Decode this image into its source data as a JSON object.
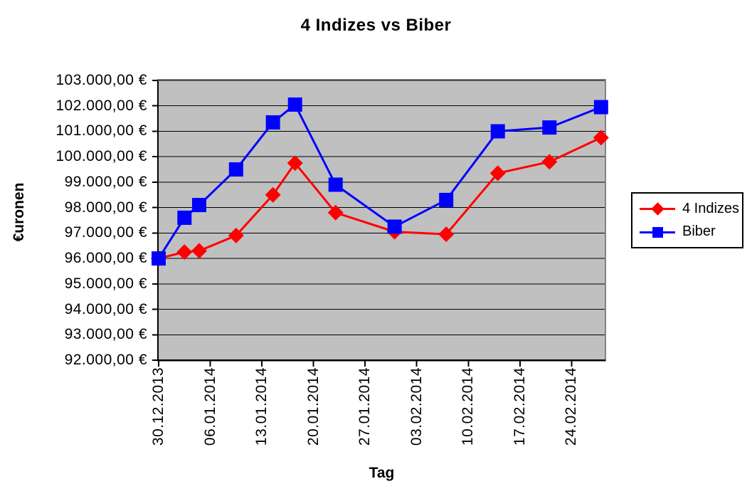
{
  "chart_data": {
    "type": "line",
    "title": "4 Indizes vs Biber",
    "xlabel": "Tag",
    "ylabel": "€uronen",
    "plot_background": "#c0c0c0",
    "grid": "horizontal",
    "y_axis": {
      "min": 92000,
      "max": 103000,
      "step": 1000,
      "tick_labels_top_to_bottom": [
        "103.000,00 €",
        "102.000,00 €",
        "101.000,00 €",
        "100.000,00 €",
        "99.000,00 €",
        "98.000,00 €",
        "97.000,00 €",
        "96.000,00 €",
        "95.000,00 €",
        "94.000,00 €",
        "93.000,00 €",
        "92.000,00 €"
      ]
    },
    "x_axis": {
      "unit": "days offset from first tick (30.12.2013)",
      "min": 0,
      "max": 60.5,
      "ticks": [
        {
          "day": 0,
          "label": "30.12.2013"
        },
        {
          "day": 7,
          "label": "06.01.2014"
        },
        {
          "day": 14,
          "label": "13.01.2014"
        },
        {
          "day": 21,
          "label": "20.01.2014"
        },
        {
          "day": 28,
          "label": "27.01.2014"
        },
        {
          "day": 35,
          "label": "03.02.2014"
        },
        {
          "day": 42,
          "label": "10.02.2014"
        },
        {
          "day": 49,
          "label": "17.02.2014"
        },
        {
          "day": 56,
          "label": "24.02.2014"
        }
      ]
    },
    "legend": {
      "position": "right",
      "border_color": "#000000",
      "entries": [
        {
          "label": "4 Indizes",
          "color": "#ff0000",
          "marker": "diamond"
        },
        {
          "label": "Biber",
          "color": "#0000ff",
          "marker": "square"
        }
      ]
    },
    "series": [
      {
        "name": "4 Indizes",
        "color": "#ff0000",
        "marker": "diamond",
        "x_days": [
          0,
          3.5,
          5.5,
          10.5,
          15.5,
          18.5,
          24,
          32,
          39,
          46,
          53,
          60
        ],
        "values": [
          96000,
          96250,
          96300,
          96900,
          98500,
          99750,
          97800,
          97050,
          96950,
          99350,
          99800,
          100750
        ]
      },
      {
        "name": "Biber",
        "color": "#0000ff",
        "marker": "square",
        "x_days": [
          0,
          3.5,
          5.5,
          10.5,
          15.5,
          18.5,
          24,
          32,
          39,
          46,
          53,
          60
        ],
        "values": [
          96000,
          97600,
          98100,
          99500,
          101350,
          102050,
          98900,
          97250,
          98300,
          101000,
          101150,
          101950
        ]
      }
    ]
  }
}
